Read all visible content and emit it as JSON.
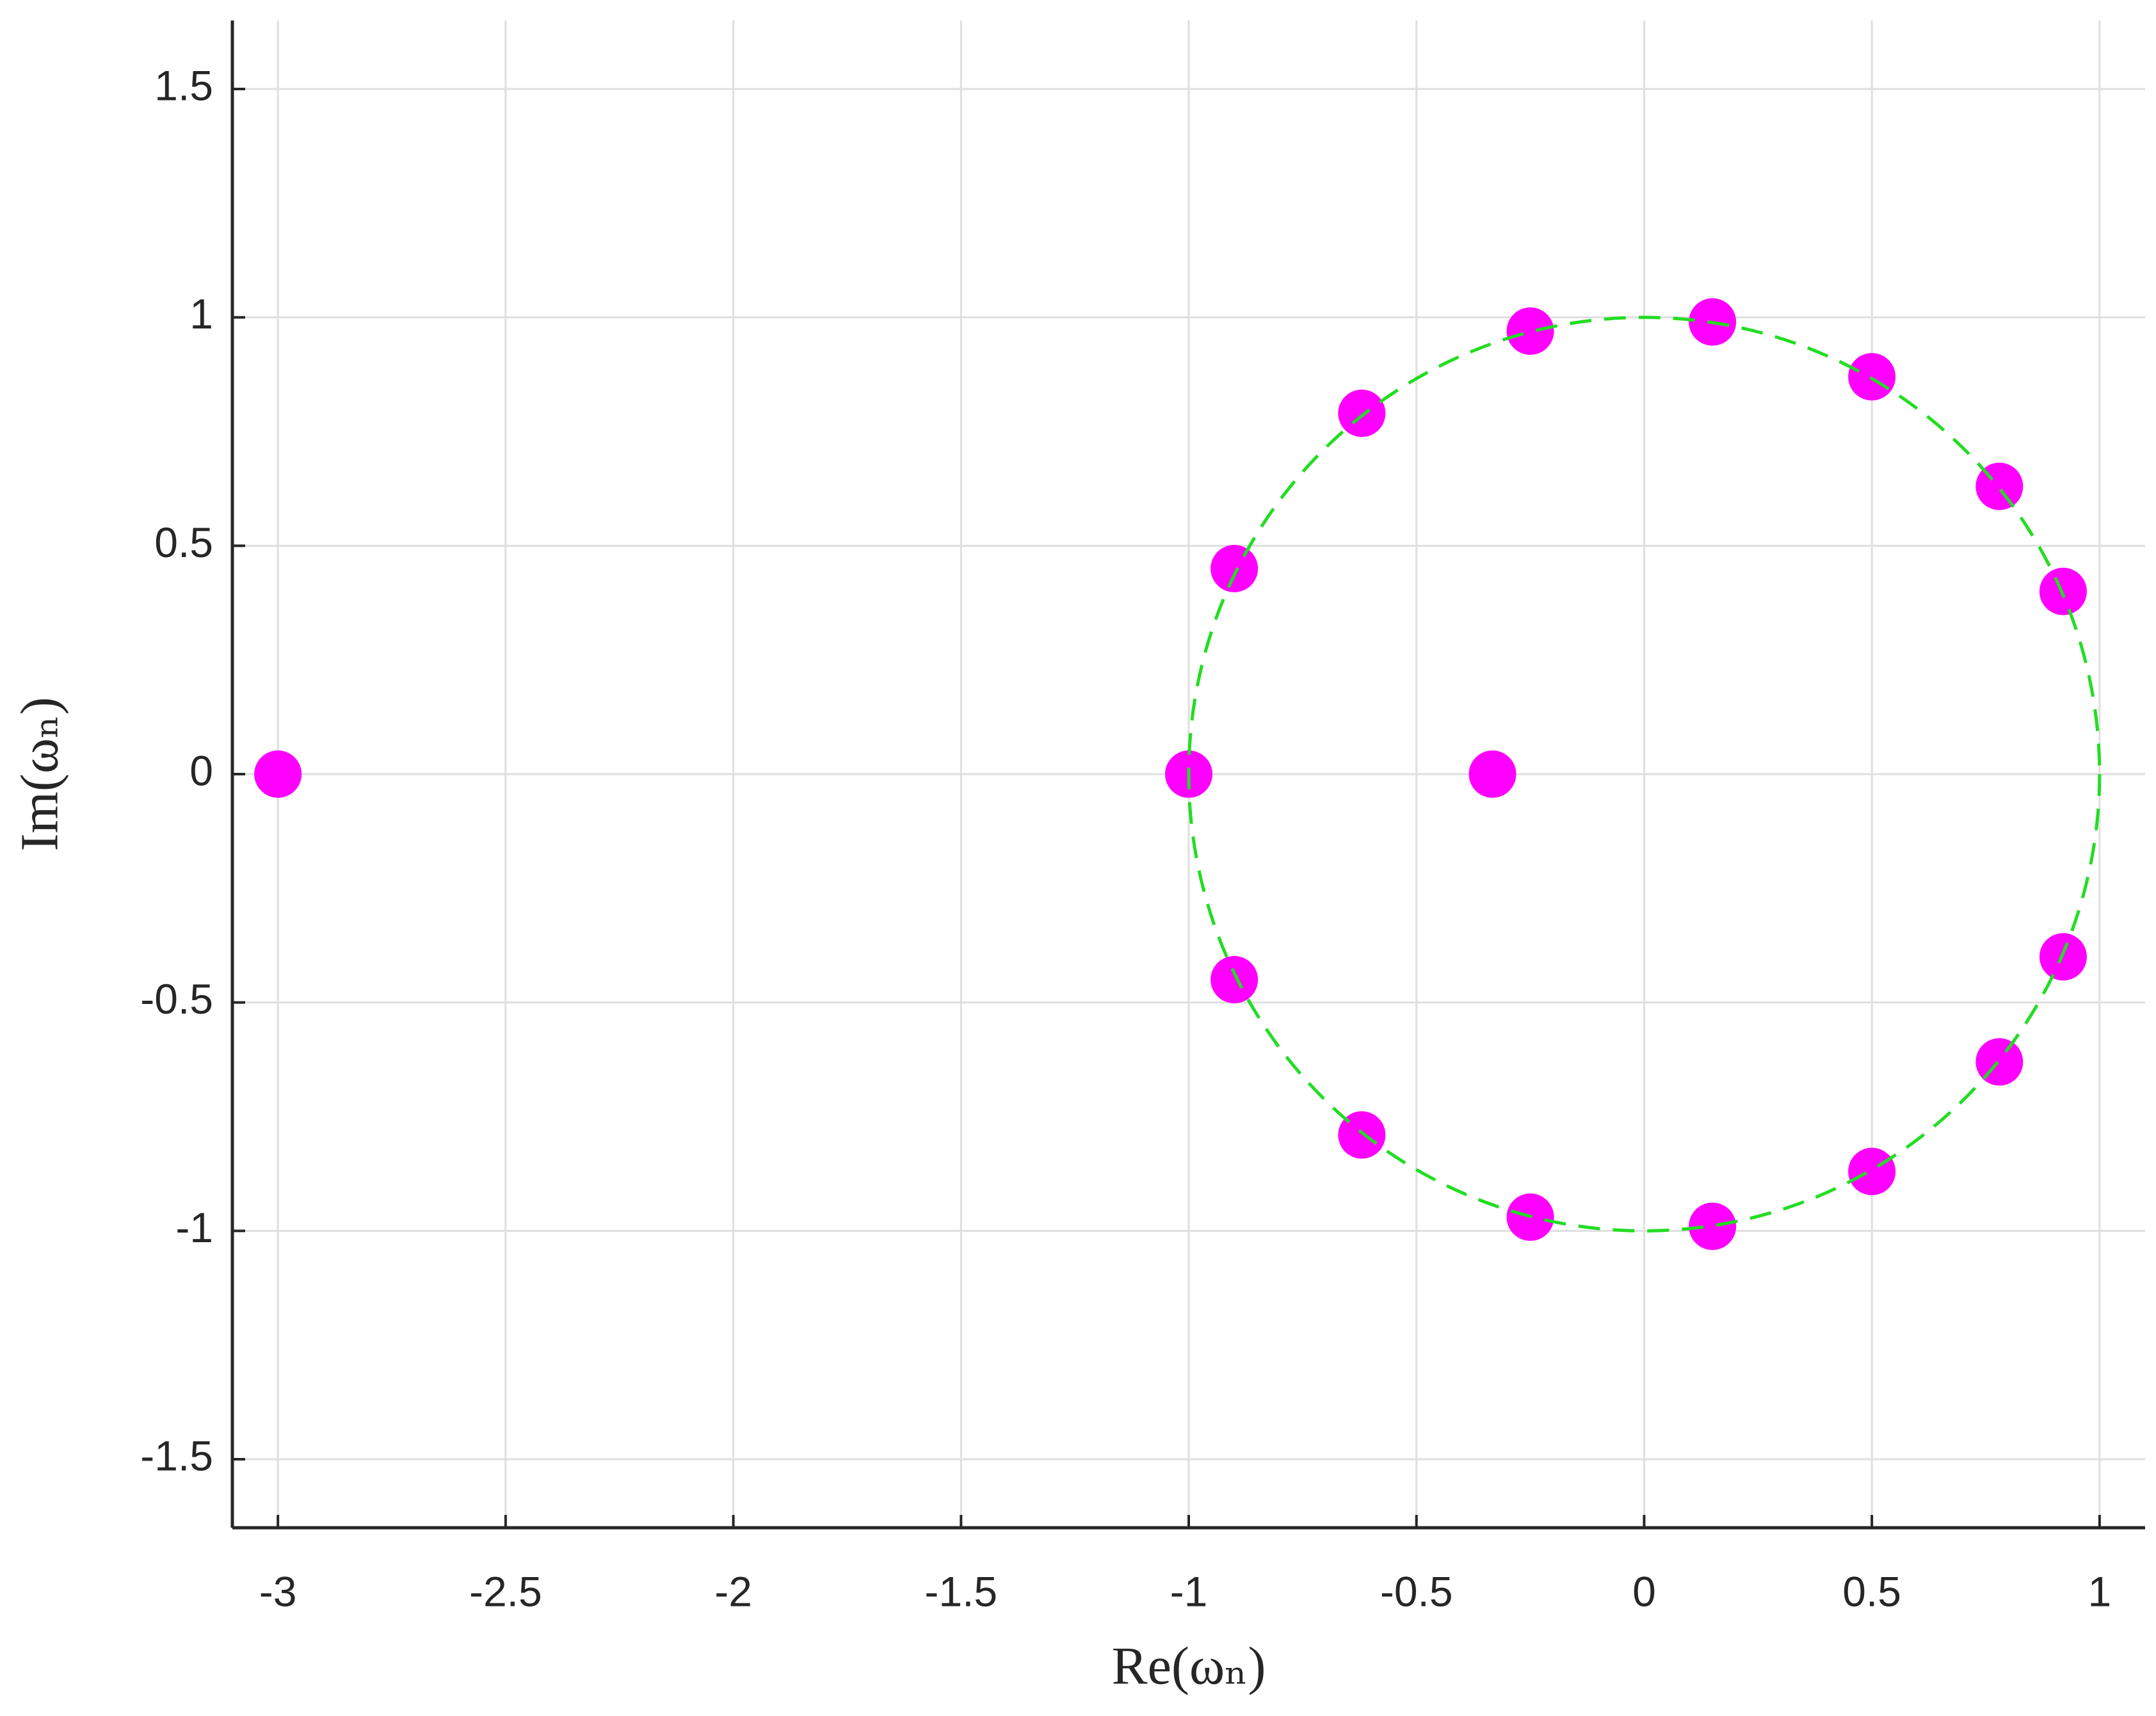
{
  "chart_data": {
    "type": "scatter",
    "xlabel": "Re(ωₙ)",
    "ylabel": "Im(ωₙ)",
    "xlim": [
      -3.1,
      1.1
    ],
    "ylim": [
      -1.65,
      1.65
    ],
    "xticks": [
      -3,
      -2.5,
      -2,
      -1.5,
      -1,
      -0.5,
      0,
      0.5,
      1
    ],
    "yticks": [
      -1.5,
      -1,
      -0.5,
      0,
      0.5,
      1,
      1.5
    ],
    "grid": true,
    "series": [
      {
        "color": "#ff00ff",
        "x": [
          -3,
          -1,
          -0.333,
          -0.9,
          -0.9,
          -0.62,
          -0.62,
          -0.25,
          -0.25,
          0.15,
          0.15,
          0.5,
          0.5,
          0.78,
          0.78,
          0.92,
          0.92
        ],
        "y": [
          0,
          0,
          0,
          0.45,
          -0.45,
          0.79,
          -0.79,
          0.97,
          -0.97,
          0.99,
          -0.99,
          0.87,
          -0.87,
          0.63,
          -0.63,
          0.4,
          -0.4
        ]
      }
    ],
    "circle": {
      "center": [
        0,
        0
      ],
      "radius": 1,
      "color": "#22dd22",
      "dashed": true
    }
  }
}
